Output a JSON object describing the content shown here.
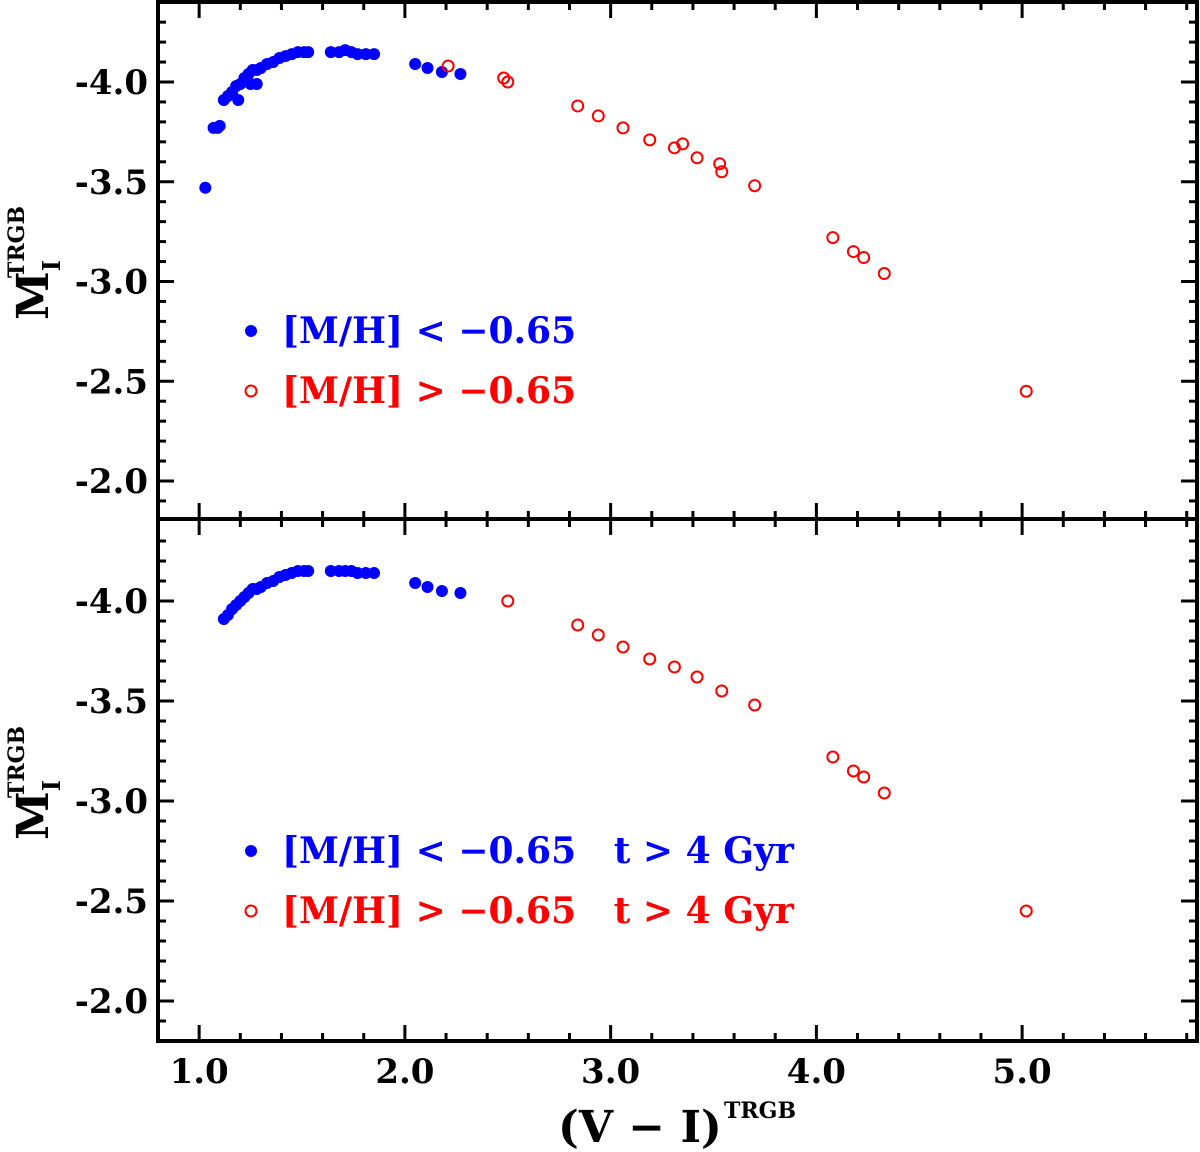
{
  "chart_data": [
    {
      "type": "scatter",
      "panel": "top",
      "xlim": [
        0.8,
        5.85
      ],
      "ylim": [
        -1.8,
        -4.4
      ],
      "ylabel": "M",
      "ylabel_sub": "I",
      "ylabel_sup": "TRGB",
      "xlabel": "",
      "y_ticks": [
        -4.0,
        -3.5,
        -3.0,
        -2.5,
        -2.0
      ],
      "y_tick_labels": [
        "-4.0",
        "-3.5",
        "-3.0",
        "-2.5",
        "-2.0"
      ],
      "legend_position": "lower-left",
      "series": [
        {
          "name": "[M/H] < −0.65",
          "marker": "filled-circle",
          "color": "#0000ff",
          "x": [
            1.03,
            1.07,
            1.09,
            1.1,
            1.12,
            1.14,
            1.16,
            1.18,
            1.2,
            1.22,
            1.24,
            1.26,
            1.28,
            1.3,
            1.33,
            1.36,
            1.39,
            1.42,
            1.45,
            1.48,
            1.51,
            1.53,
            1.64,
            1.68,
            1.71,
            1.74,
            1.77,
            1.81,
            1.85,
            2.05,
            2.11,
            2.18,
            2.27,
            1.19,
            1.25,
            1.28,
            1.16
          ],
          "y": [
            -3.47,
            -3.77,
            -3.77,
            -3.78,
            -3.91,
            -3.93,
            -3.95,
            -3.98,
            -3.99,
            -4.02,
            -4.04,
            -4.06,
            -4.06,
            -4.07,
            -4.09,
            -4.1,
            -4.12,
            -4.13,
            -4.14,
            -4.15,
            -4.15,
            -4.15,
            -4.15,
            -4.15,
            -4.16,
            -4.15,
            -4.14,
            -4.14,
            -4.14,
            -4.09,
            -4.07,
            -4.05,
            -4.04,
            -3.91,
            -3.99,
            -3.99,
            -3.95
          ]
        },
        {
          "name": "[M/H] > −0.65",
          "marker": "open-circle",
          "color": "#ff0000",
          "x": [
            2.21,
            2.48,
            2.5,
            2.84,
            2.94,
            3.06,
            3.19,
            3.31,
            3.35,
            3.42,
            3.53,
            3.54,
            3.7,
            4.08,
            4.18,
            4.23,
            4.33,
            5.02
          ],
          "y": [
            -4.08,
            -4.02,
            -4.0,
            -3.88,
            -3.83,
            -3.77,
            -3.71,
            -3.67,
            -3.69,
            -3.62,
            -3.59,
            -3.55,
            -3.48,
            -3.22,
            -3.15,
            -3.12,
            -3.04,
            -2.45
          ]
        }
      ]
    },
    {
      "type": "scatter",
      "panel": "bottom",
      "xlim": [
        0.8,
        5.85
      ],
      "ylim": [
        -1.8,
        -4.4
      ],
      "ylabel": "M",
      "ylabel_sub": "I",
      "ylabel_sup": "TRGB",
      "xlabel": "(V − I)",
      "xlabel_sup": "TRGB",
      "x_ticks": [
        1.0,
        2.0,
        3.0,
        4.0,
        5.0
      ],
      "x_tick_labels": [
        "1.0",
        "2.0",
        "3.0",
        "4.0",
        "5.0"
      ],
      "y_ticks": [
        -4.0,
        -3.5,
        -3.0,
        -2.5,
        -2.0
      ],
      "y_tick_labels": [
        "-4.0",
        "-3.5",
        "-3.0",
        "-2.5",
        "-2.0"
      ],
      "legend_position": "lower-left",
      "series": [
        {
          "name": "[M/H] < −0.65   t > 4 Gyr",
          "marker": "filled-circle",
          "color": "#0000ff",
          "x": [
            1.12,
            1.14,
            1.16,
            1.18,
            1.2,
            1.22,
            1.24,
            1.26,
            1.28,
            1.3,
            1.33,
            1.36,
            1.39,
            1.42,
            1.45,
            1.48,
            1.51,
            1.53,
            1.64,
            1.68,
            1.71,
            1.74,
            1.77,
            1.81,
            1.85,
            2.05,
            2.11,
            2.18,
            2.27
          ],
          "y": [
            -3.91,
            -3.93,
            -3.96,
            -3.98,
            -4.0,
            -4.02,
            -4.04,
            -4.06,
            -4.06,
            -4.07,
            -4.09,
            -4.1,
            -4.12,
            -4.13,
            -4.14,
            -4.15,
            -4.15,
            -4.15,
            -4.15,
            -4.15,
            -4.15,
            -4.15,
            -4.14,
            -4.14,
            -4.14,
            -4.09,
            -4.07,
            -4.05,
            -4.04
          ]
        },
        {
          "name": "[M/H] > −0.65   t > 4 Gyr",
          "marker": "open-circle",
          "color": "#ff0000",
          "x": [
            2.5,
            2.84,
            2.94,
            3.06,
            3.19,
            3.31,
            3.42,
            3.54,
            3.7,
            4.08,
            4.18,
            4.23,
            4.33,
            5.02
          ],
          "y": [
            -4.0,
            -3.88,
            -3.83,
            -3.77,
            -3.71,
            -3.67,
            -3.62,
            -3.55,
            -3.48,
            -3.22,
            -3.15,
            -3.12,
            -3.04,
            -2.45
          ]
        }
      ]
    }
  ]
}
